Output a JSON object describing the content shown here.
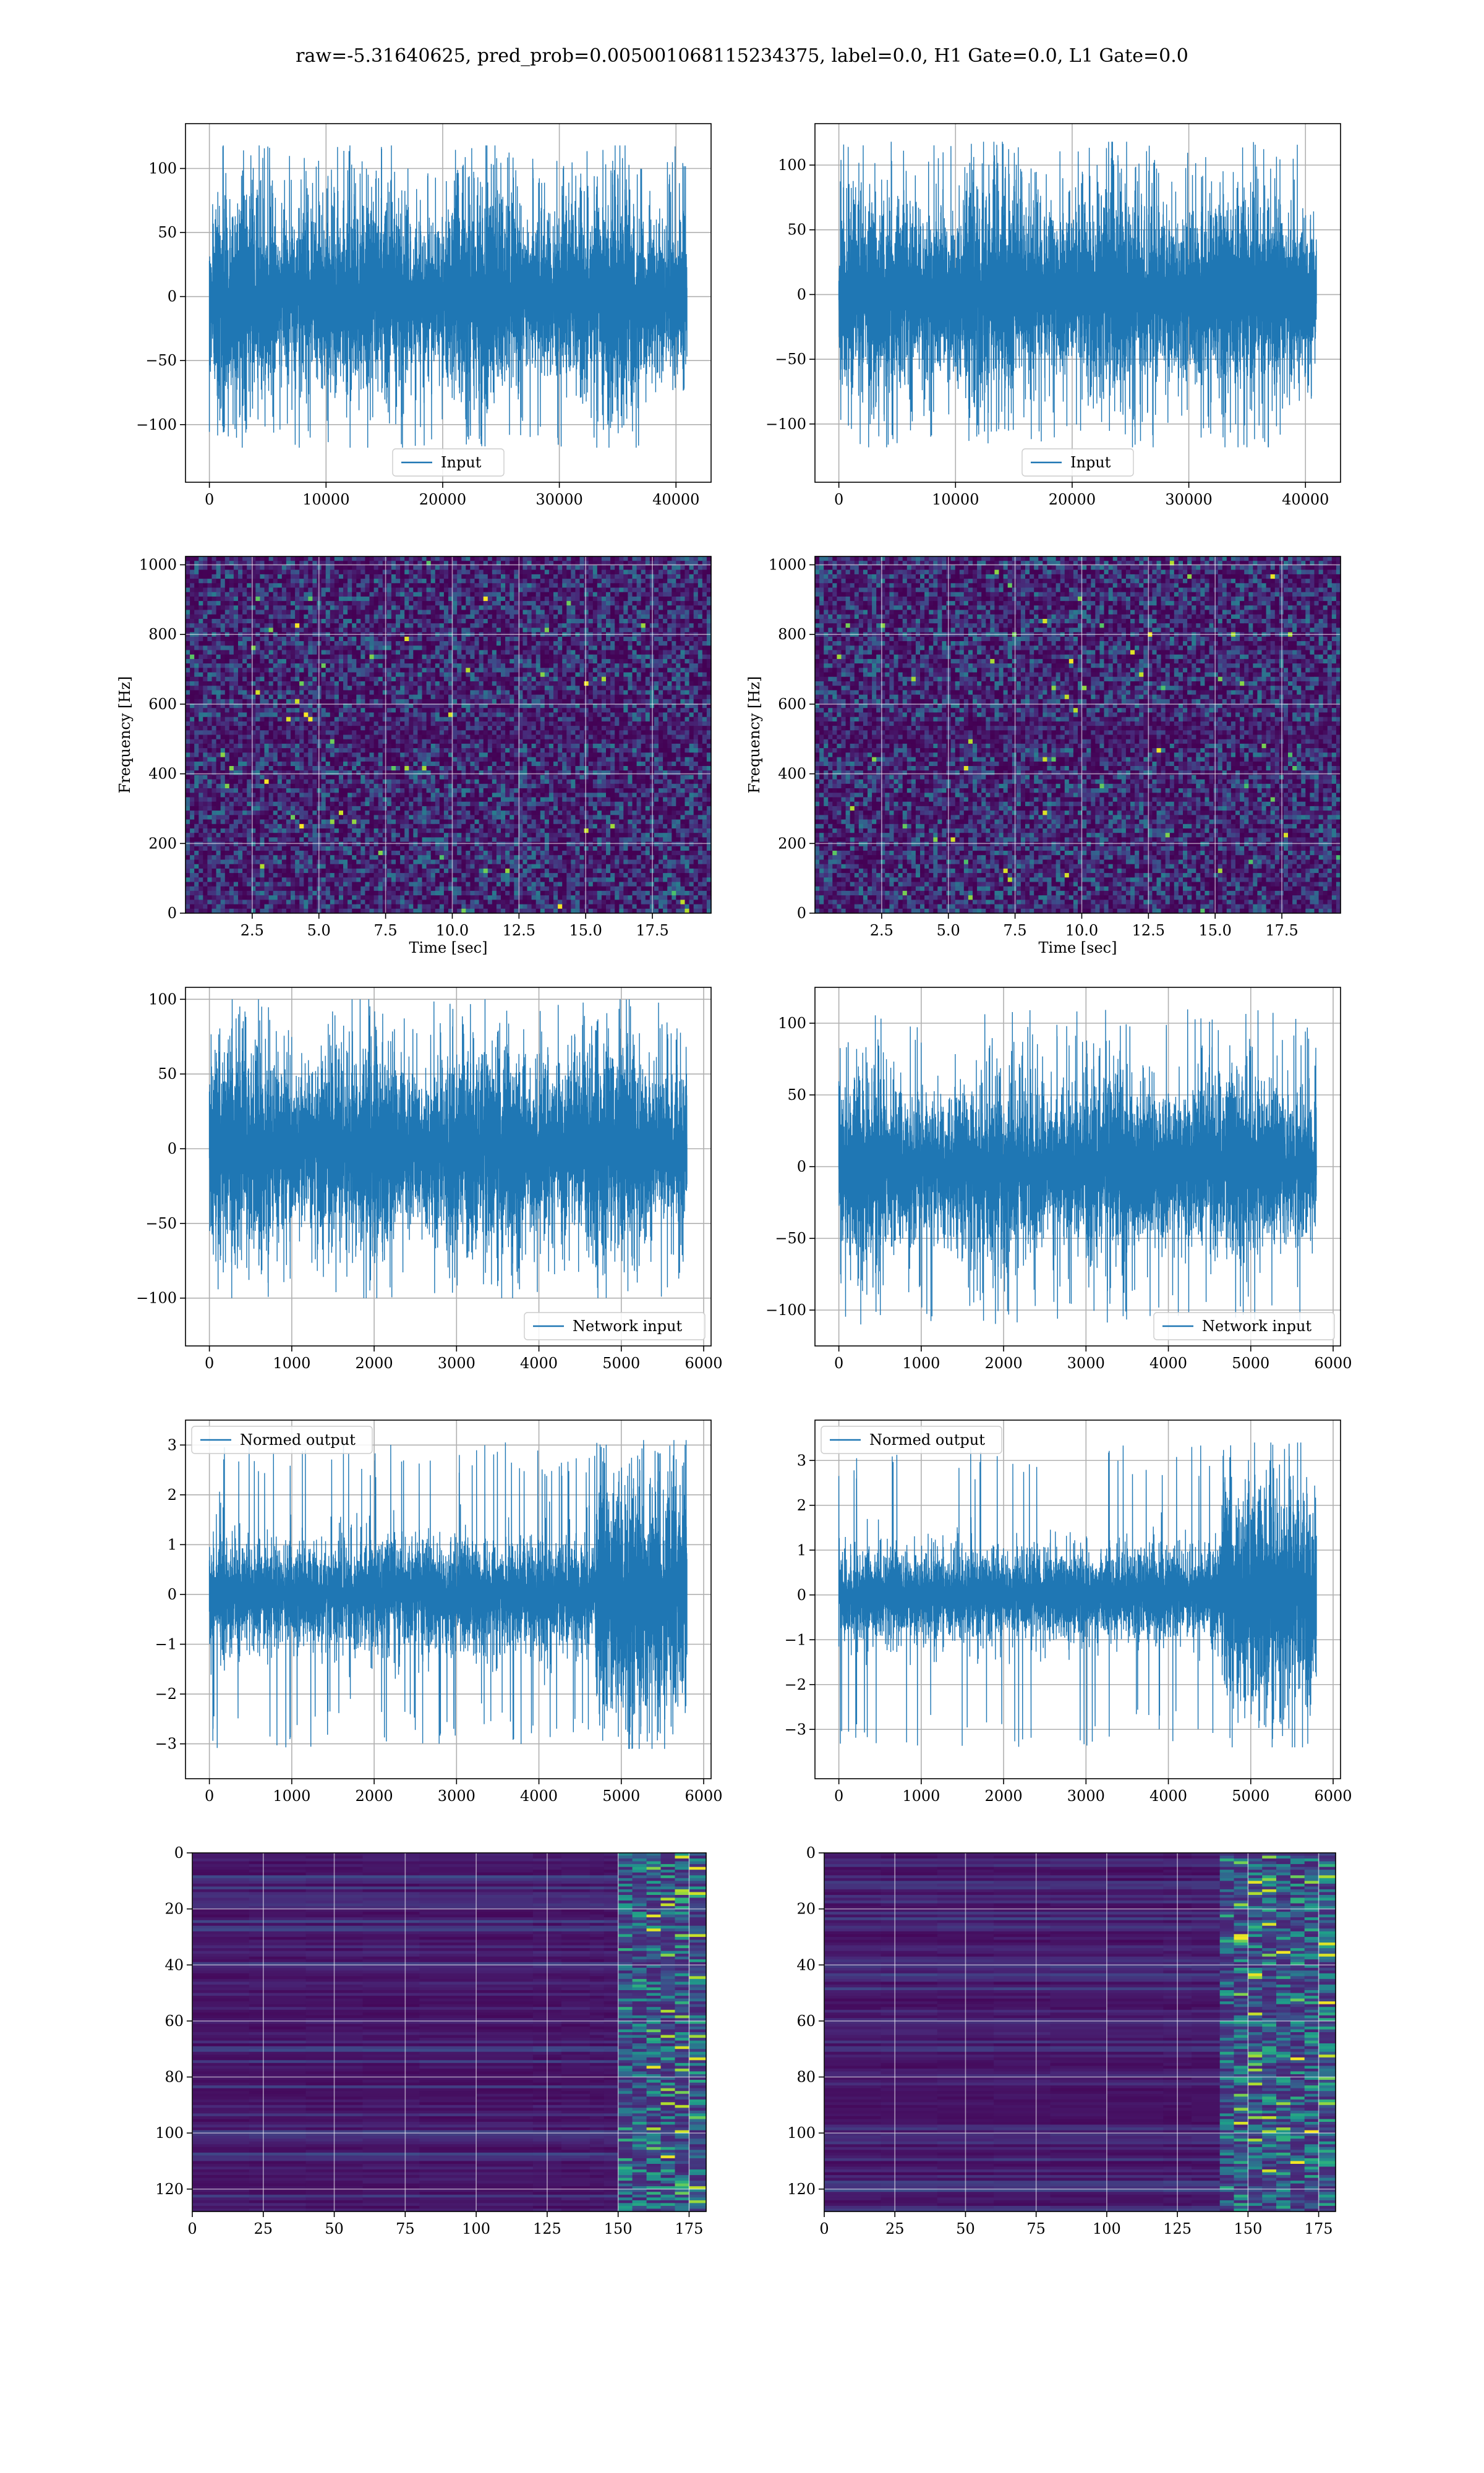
{
  "figure": {
    "suptitle": "raw=-5.31640625, pred_prob=0.005001068115234375, label=0.0, H1 Gate=0.0, L1 Gate=0.0"
  },
  "chart_data": [
    {
      "id": "input-h1",
      "type": "line",
      "title": "",
      "series": [
        {
          "name": "Input",
          "length": 40960,
          "amplitude": 28,
          "peak": 118
        }
      ],
      "xlim": [
        -2048,
        43008
      ],
      "ylim": [
        -145,
        135
      ],
      "xticks": [
        0,
        10000,
        20000,
        30000,
        40000
      ],
      "yticks": [
        -100,
        -50,
        0,
        50,
        100
      ],
      "xlabel": "",
      "ylabel": "",
      "grid": true,
      "legend": "lower center",
      "color": "#1f77b4"
    },
    {
      "id": "input-l1",
      "type": "line",
      "title": "",
      "series": [
        {
          "name": "Input",
          "length": 40960,
          "amplitude": 28,
          "peak": 118
        }
      ],
      "xlim": [
        -2048,
        43008
      ],
      "ylim": [
        -145,
        132
      ],
      "xticks": [
        0,
        10000,
        20000,
        30000,
        40000
      ],
      "yticks": [
        -100,
        -50,
        0,
        50,
        100
      ],
      "xlabel": "",
      "ylabel": "",
      "grid": true,
      "legend": "lower center",
      "color": "#1f77b4"
    },
    {
      "id": "spectrogram-h1",
      "type": "heatmap",
      "title": "",
      "xlim": [
        0,
        19.7
      ],
      "ylim": [
        0,
        1024
      ],
      "xticks": [
        2.5,
        5.0,
        7.5,
        10.0,
        12.5,
        15.0,
        17.5
      ],
      "yticks": [
        0,
        200,
        400,
        600,
        800,
        1000
      ],
      "xlabel": "Time [sec]",
      "ylabel": "Frequency [Hz]",
      "grid": true,
      "colormap": "viridis"
    },
    {
      "id": "spectrogram-l1",
      "type": "heatmap",
      "title": "",
      "xlim": [
        0,
        19.7
      ],
      "ylim": [
        0,
        1024
      ],
      "xticks": [
        2.5,
        5.0,
        7.5,
        10.0,
        12.5,
        15.0,
        17.5
      ],
      "yticks": [
        0,
        200,
        400,
        600,
        800,
        1000
      ],
      "xlabel": "Time [sec]",
      "ylabel": "Frequency [Hz]",
      "grid": true,
      "colormap": "viridis"
    },
    {
      "id": "network-input-h1",
      "type": "line",
      "title": "",
      "series": [
        {
          "name": "Network input",
          "length": 5800,
          "amplitude": 24,
          "peak": 100
        }
      ],
      "xlim": [
        -290,
        6090
      ],
      "ylim": [
        -132,
        108
      ],
      "xticks": [
        0,
        1000,
        2000,
        3000,
        4000,
        5000,
        6000
      ],
      "yticks": [
        -100,
        -50,
        0,
        50,
        100
      ],
      "xlabel": "",
      "ylabel": "",
      "grid": true,
      "legend": "lower right",
      "color": "#1f77b4"
    },
    {
      "id": "network-input-l1",
      "type": "line",
      "title": "",
      "series": [
        {
          "name": "Network input",
          "length": 5800,
          "amplitude": 22,
          "peak": 110
        }
      ],
      "xlim": [
        -290,
        6090
      ],
      "ylim": [
        -125,
        125
      ],
      "xticks": [
        0,
        1000,
        2000,
        3000,
        4000,
        5000,
        6000
      ],
      "yticks": [
        -100,
        -50,
        0,
        50,
        100
      ],
      "xlabel": "",
      "ylabel": "",
      "grid": true,
      "legend": "lower right",
      "color": "#1f77b4"
    },
    {
      "id": "normed-output-h1",
      "type": "line",
      "title": "",
      "series": [
        {
          "name": "Normed output",
          "length": 5800,
          "amplitude": 0.35,
          "peak": 3.1,
          "burst_start": 4700,
          "burst_amplitude": 0.8
        }
      ],
      "xlim": [
        -290,
        6090
      ],
      "ylim": [
        -3.7,
        3.5
      ],
      "xticks": [
        0,
        1000,
        2000,
        3000,
        4000,
        5000,
        6000
      ],
      "yticks": [
        -3,
        -2,
        -1,
        0,
        1,
        2,
        3
      ],
      "xlabel": "",
      "ylabel": "",
      "grid": true,
      "legend": "upper left",
      "color": "#1f77b4"
    },
    {
      "id": "normed-output-l1",
      "type": "line",
      "title": "",
      "series": [
        {
          "name": "Normed output",
          "length": 5800,
          "amplitude": 0.33,
          "peak": 3.4,
          "burst_start": 4650,
          "burst_amplitude": 0.8
        }
      ],
      "xlim": [
        -290,
        6090
      ],
      "ylim": [
        -4.1,
        3.9
      ],
      "xticks": [
        0,
        1000,
        2000,
        3000,
        4000,
        5000,
        6000
      ],
      "yticks": [
        -3,
        -2,
        -1,
        0,
        1,
        2,
        3
      ],
      "xlabel": "",
      "ylabel": "",
      "grid": true,
      "legend": "upper left",
      "color": "#1f77b4"
    },
    {
      "id": "feature-map-h1",
      "type": "heatmap",
      "title": "",
      "xlim": [
        0,
        181
      ],
      "ylim": [
        128,
        0
      ],
      "xticks": [
        0,
        25,
        50,
        75,
        100,
        125,
        150,
        175
      ],
      "yticks": [
        0,
        20,
        40,
        60,
        80,
        100,
        120
      ],
      "xlabel": "",
      "ylabel": "",
      "grid": true,
      "colormap": "viridis",
      "active_from": 150
    },
    {
      "id": "feature-map-l1",
      "type": "heatmap",
      "title": "",
      "xlim": [
        0,
        181
      ],
      "ylim": [
        128,
        0
      ],
      "xticks": [
        0,
        25,
        50,
        75,
        100,
        125,
        150,
        175
      ],
      "yticks": [
        0,
        20,
        40,
        60,
        80,
        100,
        120
      ],
      "xlabel": "",
      "ylabel": "",
      "grid": true,
      "colormap": "viridis",
      "active_from": 135
    }
  ]
}
